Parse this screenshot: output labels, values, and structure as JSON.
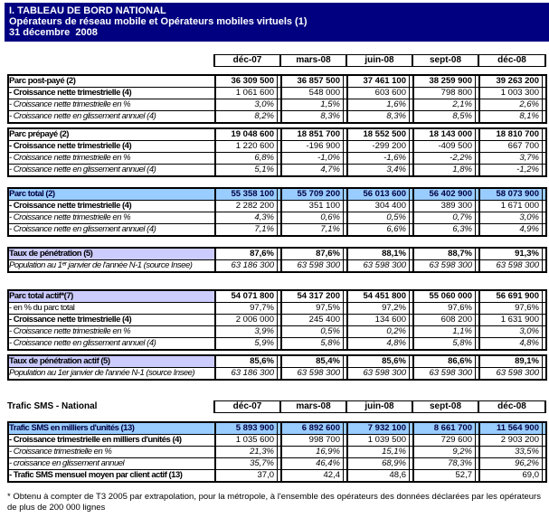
{
  "title": {
    "line1": "I. TABLEAU DE BORD NATIONAL",
    "line2": "Opérateurs de réseau mobile et Opérateurs mobiles virtuels (1)",
    "line3": "31 décembre  2008"
  },
  "colors": {
    "title_bg": "#000080",
    "row_blue": "#99CCFF",
    "row_lavender": "#CCCCFF",
    "blue_row_text": "#000040"
  },
  "columns": {
    "labels": [
      "déc-07",
      "mars-08",
      "juin-08",
      "sept-08",
      "déc-08"
    ]
  },
  "blocks": [
    {
      "type": "colheader",
      "name": "period-columns",
      "gap": 14,
      "label": ""
    },
    {
      "type": "section",
      "name": "parc-post-paye",
      "gap": 8,
      "rows": [
        {
          "label": "Parc post-payé (2)",
          "ls": "b",
          "vs": "b",
          "fill": "none",
          "values": [
            "36 309 500",
            "36 857 500",
            "37 461 100",
            "38 259 900",
            "39 263 200"
          ]
        },
        {
          "label": "- Croissance nette trimestrielle (4)",
          "ls": "b",
          "vs": "n",
          "fill": "none",
          "values": [
            "1 061 600",
            "548 000",
            "603 600",
            "798 800",
            "1 003 300"
          ]
        },
        {
          "label": "- Croissance nette trimestrielle en %",
          "ls": "i",
          "vs": "i",
          "fill": "none",
          "values": [
            "3,0%",
            "1,5%",
            "1,6%",
            "2,1%",
            "2,6%"
          ]
        },
        {
          "label": "- Croissance nette en glissement annuel (4)",
          "ls": "i",
          "vs": "i",
          "fill": "none",
          "values": [
            "8,2%",
            "8,3%",
            "8,3%",
            "8,5%",
            "8,1%"
          ]
        }
      ]
    },
    {
      "type": "section",
      "name": "parc-prepaye",
      "gap": 4,
      "rows": [
        {
          "label": "Parc prépayé (2)",
          "ls": "b",
          "vs": "b",
          "fill": "none",
          "values": [
            "19 048 600",
            "18 851 700",
            "18 552 500",
            "18 143 000",
            "18 810 700"
          ]
        },
        {
          "label": "- Croissance nette trimestrielle (4)",
          "ls": "b",
          "vs": "n",
          "fill": "none",
          "values": [
            "1 220 600",
            "-196 900",
            "-299 200",
            "-409 500",
            "667 700"
          ]
        },
        {
          "label": "- Croissance nette trimestrielle en %",
          "ls": "i",
          "vs": "i",
          "fill": "none",
          "values": [
            "6,8%",
            "-1,0%",
            "-1,6%",
            "-2,2%",
            "3,7%"
          ]
        },
        {
          "label": "- Croissance nette en glissement annuel (4)",
          "ls": "i",
          "vs": "i",
          "fill": "none",
          "values": [
            "5,1%",
            "4,7%",
            "3,4%",
            "1,8%",
            "-1,2%"
          ]
        }
      ]
    },
    {
      "type": "section",
      "name": "parc-total",
      "gap": 11,
      "rows": [
        {
          "label": "Parc total (2)",
          "ls": "b",
          "vs": "b",
          "fill": "blue",
          "values": [
            "55 358 100",
            "55 709 200",
            "56 013 600",
            "56 402 900",
            "58 073 900"
          ]
        },
        {
          "label": "- Croissance nette trimestrielle (4)",
          "ls": "b",
          "vs": "n",
          "fill": "none",
          "values": [
            "2 282 200",
            "351 100",
            "304 400",
            "389 300",
            "1 671 000"
          ]
        },
        {
          "label": "- Croissance nette trimestrielle en %",
          "ls": "i",
          "vs": "i",
          "fill": "none",
          "values": [
            "4,3%",
            "0,6%",
            "0,5%",
            "0,7%",
            "3,0%"
          ]
        },
        {
          "label": "- Croissance nette en glissement annuel (4)",
          "ls": "i",
          "vs": "i",
          "fill": "none",
          "values": [
            "7,1%",
            "7,1%",
            "6,6%",
            "6,3%",
            "4,9%"
          ]
        }
      ]
    },
    {
      "type": "section",
      "name": "taux-penetration",
      "gap": 11,
      "rows": [
        {
          "label": "Taux de pénétration (5)",
          "ls": "b",
          "vs": "b",
          "fill": "lav",
          "values": [
            "87,6%",
            "87,6%",
            "88,1%",
            "88,7%",
            "91,3%"
          ]
        },
        {
          "label": "Population au 1ᵉʳ janvier de l'année N-1 (source Insee)",
          "ls": "i",
          "vs": "i",
          "fill": "none",
          "values": [
            "63 186 300",
            "63 598 300",
            "63 598 300",
            "63 598 300",
            "63 598 300"
          ]
        }
      ]
    },
    {
      "type": "section",
      "name": "parc-total-actif",
      "gap": 18,
      "rows": [
        {
          "label": "Parc total actif*(7)",
          "ls": "b",
          "vs": "b",
          "fill": "lav",
          "values": [
            "54 071 800",
            "54 317 200",
            "54 451 800",
            "55 060 000",
            "56 691 900"
          ]
        },
        {
          "label": "- en % du parc total",
          "ls": "n",
          "vs": "n",
          "fill": "none",
          "values": [
            "97,7%",
            "97,5%",
            "97,2%",
            "97,6%",
            "97,6%"
          ]
        },
        {
          "label": "- Croissance nette trimestrielle (4)",
          "ls": "b",
          "vs": "n",
          "fill": "none",
          "values": [
            "2 006 000",
            "245 400",
            "134 600",
            "608 200",
            "1 631 900"
          ]
        },
        {
          "label": "- Croissance nette trimestrielle en %",
          "ls": "i",
          "vs": "i",
          "fill": "none",
          "values": [
            "3,9%",
            "0,5%",
            "0,2%",
            "1,1%",
            "3,0%"
          ]
        },
        {
          "label": "- Croissance nette en glissement annuel (4)",
          "ls": "i",
          "vs": "i",
          "fill": "none",
          "values": [
            "5,9%",
            "5,8%",
            "4,8%",
            "5,8%",
            "4,8%"
          ]
        }
      ]
    },
    {
      "type": "section",
      "name": "taux-penetration-actif",
      "gap": 4,
      "rows": [
        {
          "label": "Taux de pénétration actif (5)",
          "ls": "b",
          "vs": "b",
          "fill": "lav",
          "values": [
            "85,6%",
            "85,4%",
            "85,6%",
            "86,6%",
            "89,1%"
          ]
        },
        {
          "label": "Population au 1er janvier de l'année N-1 (source Insee)",
          "ls": "i",
          "vs": "i",
          "fill": "none",
          "values": [
            "63 186 300",
            "63 598 300",
            "63 598 300",
            "63 598 300",
            "63 598 300"
          ]
        }
      ]
    },
    {
      "type": "colheader",
      "name": "sms-period-columns",
      "gap": 22,
      "label": "Trafic SMS - National"
    },
    {
      "type": "section",
      "name": "trafic-sms",
      "gap": 9,
      "rows": [
        {
          "label": "Trafic SMS en milliers d'unités (13)",
          "ls": "b",
          "vs": "b",
          "fill": "blue",
          "values": [
            "5 893 900",
            "6 892 600",
            "7 932 100",
            "8 661 700",
            "11 564 900"
          ]
        },
        {
          "label": "- Croissance trimestrielle en milliers d'unités (4)",
          "ls": "b",
          "vs": "n",
          "fill": "none",
          "values": [
            "1 035 600",
            "998 700",
            "1 039 500",
            "729 600",
            "2 903 200"
          ]
        },
        {
          "label": "- Croissance trimestrielle en %",
          "ls": "i",
          "vs": "i",
          "fill": "none",
          "values": [
            "21,3%",
            "16,9%",
            "15,1%",
            "9,2%",
            "33,5%"
          ]
        },
        {
          "label": "- croissance en glissement annuel",
          "ls": "i",
          "vs": "i",
          "fill": "none",
          "values": [
            "35,7%",
            "46,4%",
            "68,9%",
            "78,3%",
            "96,2%"
          ]
        },
        {
          "label": "- Trafic SMS mensuel moyen par client actif (13)",
          "ls": "b",
          "vs": "n",
          "fill": "none",
          "values": [
            "37,0",
            "42,4",
            "48,6",
            "52,7",
            "69,0"
          ]
        }
      ]
    }
  ],
  "footnote": "* Obtenu à compter de T3 2005 par extrapolation, pour la métropole, à l'ensemble des opérateurs des données déclarées par les opérateurs de plus de 200 000 lignes"
}
